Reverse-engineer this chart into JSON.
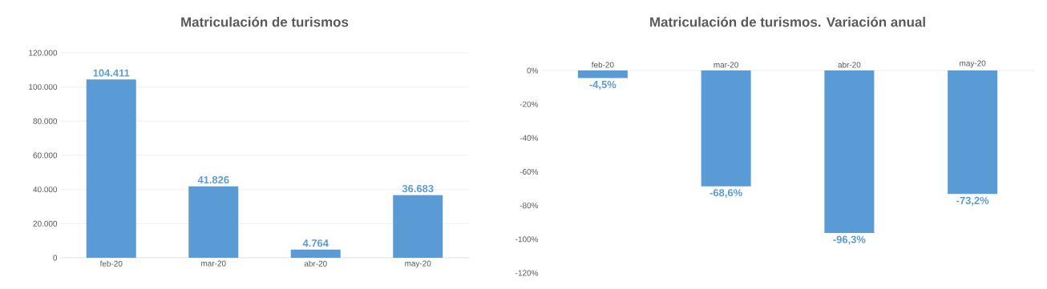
{
  "chart_data": [
    {
      "type": "bar",
      "title": "Matriculación de turismos",
      "categories": [
        "feb-20",
        "mar-20",
        "abr-20",
        "may-20"
      ],
      "values": [
        104411,
        41826,
        4764,
        36683
      ],
      "value_labels": [
        "104.411",
        "41.826",
        "4.764",
        "36.683"
      ],
      "color": "#5b9bd5",
      "ylim": [
        0,
        120000
      ],
      "yticks": [
        0,
        {
          "value": 20000,
          "label": "20.000"
        },
        {
          "value": 40000,
          "label": "40.000"
        },
        {
          "value": 60000,
          "label": "60.000"
        },
        {
          "value": 80000,
          "label": "80.000"
        },
        {
          "value": 100000,
          "label": "100.000"
        },
        {
          "value": 120000,
          "label": "120.000"
        }
      ],
      "grid": "y"
    },
    {
      "type": "bar",
      "title": "Matriculación de turismos. Variación anual",
      "categories": [
        "feb-20",
        "mar-20",
        "abr-20",
        "may-20"
      ],
      "values": [
        -4.5,
        -68.6,
        -96.3,
        -73.2
      ],
      "value_labels": [
        "-4,5%",
        "-68,6%",
        "-96,3%",
        "-73,2%"
      ],
      "color": "#5b9bd5",
      "ylim": [
        -120,
        0
      ],
      "yticks": [
        {
          "value": -120,
          "label": "-120%"
        },
        {
          "value": -100,
          "label": "-100%"
        },
        {
          "value": -80,
          "label": "-80%"
        },
        {
          "value": -60,
          "label": "-60%"
        },
        {
          "value": -40,
          "label": "-40%"
        },
        {
          "value": -20,
          "label": "-20%"
        },
        {
          "value": 0,
          "label": "0%"
        }
      ],
      "grid": false
    }
  ]
}
